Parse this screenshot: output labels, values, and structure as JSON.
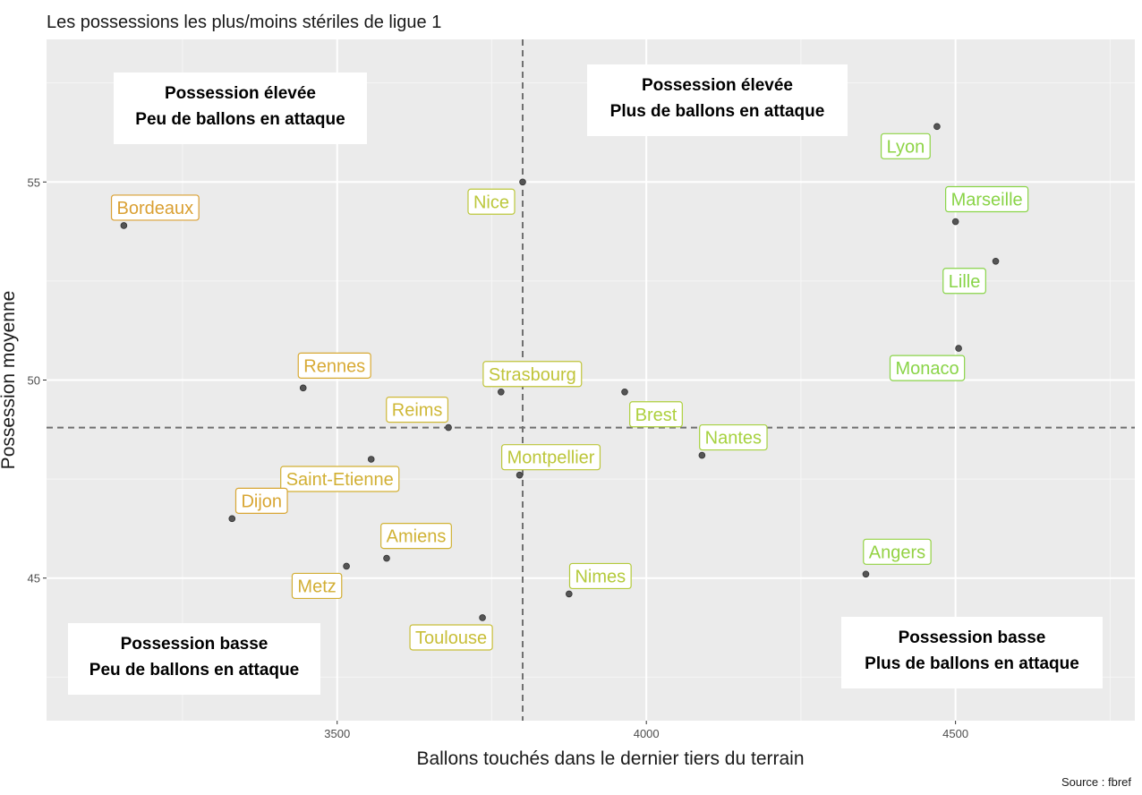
{
  "title": "Les possessions les plus/moins stériles de ligue 1",
  "source": "Source : fbref",
  "chart_data": {
    "type": "scatter",
    "title": "Les possessions les plus/moins stériles de ligue 1",
    "xlabel": "Ballons touchés dans le dernier tiers du terrain",
    "ylabel": "Possession moyenne",
    "xlim": [
      3030,
      4790
    ],
    "ylim": [
      41.4,
      58.6
    ],
    "x_ticks": [
      3500,
      4000,
      4500
    ],
    "y_ticks": [
      45,
      50,
      55
    ],
    "grid": true,
    "reference_lines": {
      "x": 3800,
      "y": 48.8
    },
    "color_scale": {
      "low": "#e0a030",
      "mid": "#bccc3c",
      "high": "#8fd24a"
    },
    "points": [
      {
        "label": "Bordeaux",
        "x": 3155,
        "y": 53.9,
        "color": "#daa033"
      },
      {
        "label": "Rennes",
        "x": 3445,
        "y": 49.8,
        "color": "#d8aa35"
      },
      {
        "label": "Reims",
        "x": 3680,
        "y": 48.8,
        "color": "#cfb837"
      },
      {
        "label": "Saint-Etienne",
        "x": 3555,
        "y": 48.0,
        "color": "#d2b034"
      },
      {
        "label": "Dijon",
        "x": 3330,
        "y": 46.5,
        "color": "#d8a634"
      },
      {
        "label": "Amiens",
        "x": 3580,
        "y": 45.5,
        "color": "#d0b235"
      },
      {
        "label": "Metz",
        "x": 3515,
        "y": 45.3,
        "color": "#d2ae34"
      },
      {
        "label": "Toulouse",
        "x": 3735,
        "y": 44.0,
        "color": "#c8be38"
      },
      {
        "label": "Nice",
        "x": 3800,
        "y": 55.0,
        "color": "#bcc83c"
      },
      {
        "label": "Strasbourg",
        "x": 3765,
        "y": 49.7,
        "color": "#c0c43a"
      },
      {
        "label": "Montpellier",
        "x": 3795,
        "y": 47.6,
        "color": "#bcc63a"
      },
      {
        "label": "Nimes",
        "x": 3875,
        "y": 44.6,
        "color": "#b4ca3c"
      },
      {
        "label": "Brest",
        "x": 3965,
        "y": 49.7,
        "color": "#aed03e"
      },
      {
        "label": "Nantes",
        "x": 4090,
        "y": 48.1,
        "color": "#a6d240"
      },
      {
        "label": "Angers",
        "x": 4355,
        "y": 45.1,
        "color": "#94d244"
      },
      {
        "label": "Lyon",
        "x": 4470,
        "y": 56.4,
        "color": "#8ed446"
      },
      {
        "label": "Marseille",
        "x": 4500,
        "y": 54.0,
        "color": "#8ad448"
      },
      {
        "label": "Lille",
        "x": 4565,
        "y": 53.0,
        "color": "#88d448"
      },
      {
        "label": "Monaco",
        "x": 4505,
        "y": 50.8,
        "color": "#8ad448"
      }
    ],
    "quadrant_labels": [
      {
        "line1": "Possession élevée",
        "line2": "Peu de ballons en attaque"
      },
      {
        "line1": "Possession élevée",
        "line2": "Plus de ballons en attaque"
      },
      {
        "line1": "Possession basse",
        "line2": "Peu de ballons en attaque"
      },
      {
        "line1": "Possession basse",
        "line2": "Plus de ballons en attaque"
      }
    ]
  }
}
